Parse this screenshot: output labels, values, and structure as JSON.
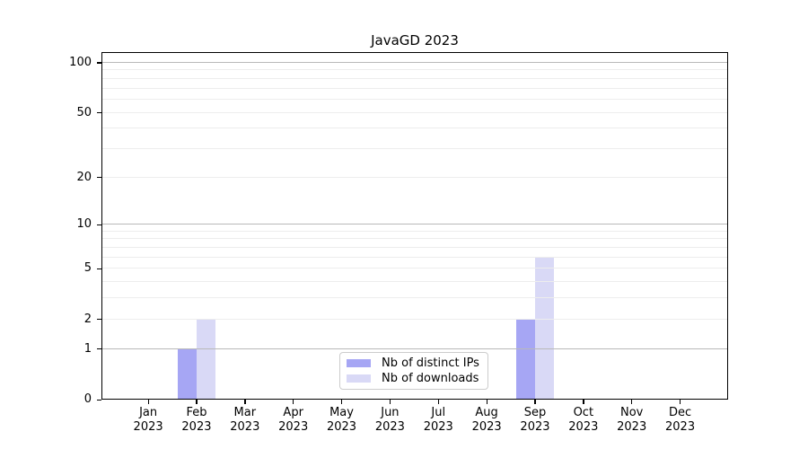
{
  "chart_data": {
    "type": "bar",
    "title": "JavaGD 2023",
    "x_categories_line1": [
      "Jan",
      "Feb",
      "Mar",
      "Apr",
      "May",
      "Jun",
      "Jul",
      "Aug",
      "Sep",
      "Oct",
      "Nov",
      "Dec"
    ],
    "x_categories_line2": "2023",
    "series": [
      {
        "name": "Nb of distinct IPs",
        "color": "#a6a6f4",
        "values": [
          0,
          1,
          0,
          0,
          0,
          0,
          0,
          0,
          2,
          0,
          0,
          0
        ]
      },
      {
        "name": "Nb of downloads",
        "color": "#d9d9f6",
        "values": [
          0,
          2,
          0,
          0,
          0,
          0,
          0,
          0,
          6,
          0,
          0,
          0
        ]
      }
    ],
    "y_scale": "log10(1+x)",
    "ylim": [
      0,
      100
    ],
    "y_ticks": [
      0,
      1,
      2,
      5,
      10,
      20,
      50,
      100
    ],
    "major_gridlines": [
      1,
      10,
      100
    ],
    "minor_gridlines": [
      2,
      3,
      4,
      5,
      6,
      7,
      8,
      9,
      20,
      30,
      40,
      50,
      60,
      70,
      80,
      90
    ],
    "legend": {
      "position": "bottom-center"
    },
    "colors": {
      "axis": "#000000",
      "major_grid": "#b9b9b9",
      "minor_grid": "#ededed",
      "legend_border": "#cccccc",
      "background": "#ffffff"
    }
  }
}
